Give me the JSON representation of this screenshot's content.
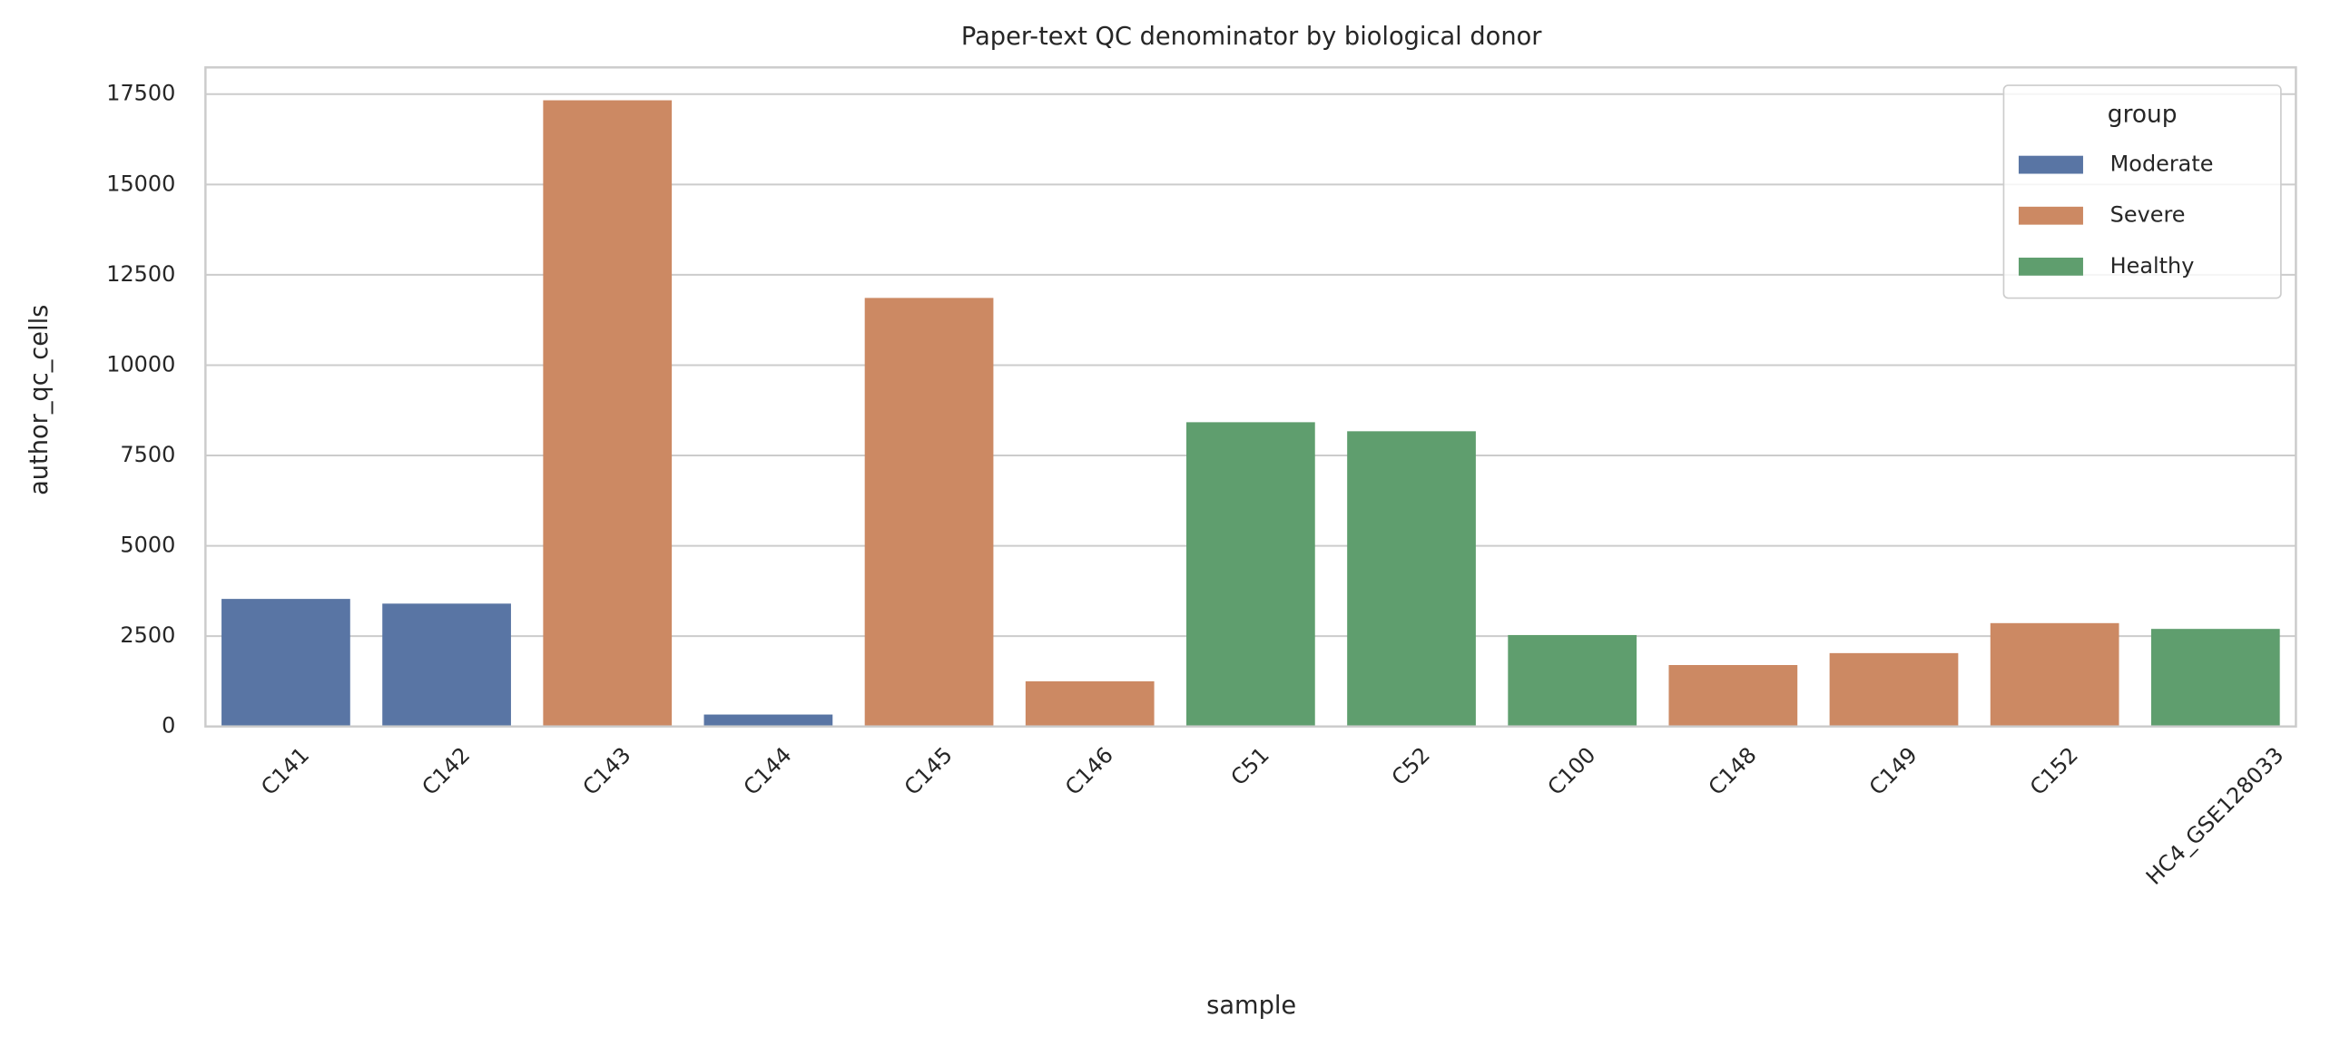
{
  "chart_data": {
    "type": "bar",
    "title": "Paper-text QC denominator by biological donor",
    "x_label": "sample",
    "y_label": "author_qc_cells",
    "categories": [
      "C141",
      "C142",
      "C143",
      "C144",
      "C145",
      "C146",
      "C51",
      "C52",
      "C100",
      "C148",
      "C149",
      "C152",
      "HC4_GSE128033"
    ],
    "series": [
      {
        "name": "Moderate",
        "color": "#5975a4",
        "values": [
          3530,
          3400,
          null,
          330,
          null,
          null,
          null,
          null,
          null,
          null,
          null,
          null,
          null
        ]
      },
      {
        "name": "Severe",
        "color": "#cc8963",
        "values": [
          null,
          null,
          17330,
          null,
          11860,
          1250,
          null,
          null,
          null,
          1700,
          2030,
          2860,
          null
        ]
      },
      {
        "name": "Healthy",
        "color": "#5f9e6e",
        "values": [
          null,
          null,
          null,
          null,
          null,
          null,
          8420,
          8170,
          2530,
          null,
          null,
          null,
          2700
        ]
      }
    ],
    "legend_title": "group",
    "legend_position": "upper right",
    "ylim": [
      0,
      18240
    ],
    "yticks": [
      0,
      2500,
      5000,
      7500,
      10000,
      12500,
      15000,
      17500
    ],
    "grid": true
  }
}
